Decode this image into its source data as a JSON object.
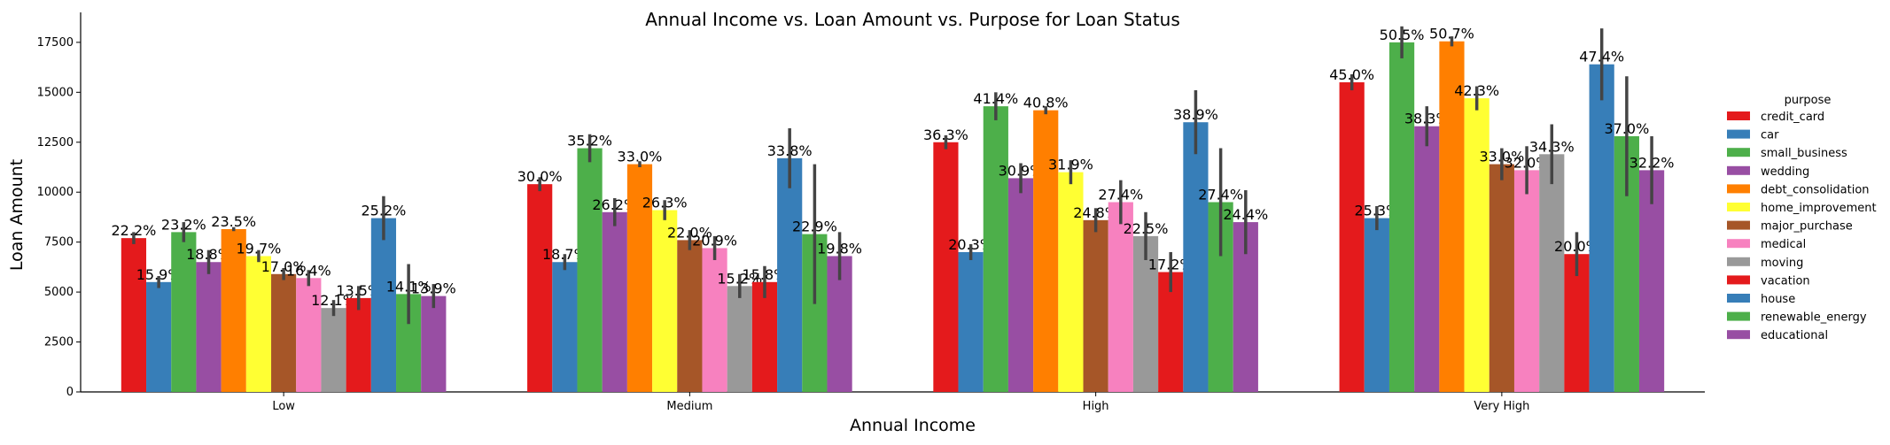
{
  "chart_data": {
    "type": "bar",
    "title": "Annual Income vs. Loan Amount vs. Purpose for Loan Status",
    "xlabel": "Annual Income",
    "ylabel": "Loan Amount",
    "categories": [
      "Low",
      "Medium",
      "High",
      "Very High"
    ],
    "ylim": [
      0,
      19000
    ],
    "yticks": [
      0,
      2500,
      5000,
      7500,
      10000,
      12500,
      15000,
      17500
    ],
    "grid": false,
    "legend": {
      "title": "purpose",
      "placement": "right"
    },
    "series": [
      {
        "name": "credit_card",
        "color": "#e41a1c",
        "values": [
          7700,
          10400,
          12500,
          15500
        ],
        "error": [
          300,
          350,
          350,
          400
        ],
        "labels": [
          "22.2%",
          "30.0%",
          "36.3%",
          "45.0%"
        ]
      },
      {
        "name": "car",
        "color": "#377eb8",
        "values": [
          5500,
          6500,
          7000,
          8700
        ],
        "error": [
          300,
          400,
          400,
          600
        ],
        "labels": [
          "15.9%",
          "18.7%",
          "20.3%",
          "25.3%"
        ]
      },
      {
        "name": "small_business",
        "color": "#4daf4a",
        "values": [
          8000,
          12200,
          14300,
          17500
        ],
        "error": [
          500,
          700,
          700,
          800
        ],
        "labels": [
          "23.2%",
          "35.2%",
          "41.4%",
          "50.5%"
        ]
      },
      {
        "name": "wedding",
        "color": "#984ea3",
        "values": [
          6500,
          9000,
          10700,
          13300
        ],
        "error": [
          600,
          700,
          750,
          1000
        ],
        "labels": [
          "18.8%",
          "26.2%",
          "30.9%",
          "38.3%"
        ]
      },
      {
        "name": "debt_consolidation",
        "color": "#ff7f00",
        "values": [
          8150,
          11400,
          14100,
          17550
        ],
        "error": [
          100,
          150,
          200,
          250
        ],
        "labels": [
          "23.5%",
          "33.0%",
          "40.8%",
          "50.7%"
        ]
      },
      {
        "name": "home_improvement",
        "color": "#ffff33",
        "values": [
          6800,
          9100,
          11000,
          14700
        ],
        "error": [
          300,
          500,
          600,
          600
        ],
        "labels": [
          "19.7%",
          "26.3%",
          "31.9%",
          "42.3%"
        ]
      },
      {
        "name": "major_purchase",
        "color": "#a65628",
        "values": [
          5900,
          7600,
          8600,
          11400
        ],
        "error": [
          300,
          500,
          600,
          800
        ],
        "labels": [
          "17.0%",
          "22.0%",
          "24.8%",
          "33.0%"
        ]
      },
      {
        "name": "medical",
        "color": "#f781bf",
        "values": [
          5700,
          7200,
          9500,
          11100
        ],
        "error": [
          400,
          600,
          1100,
          1200
        ],
        "labels": [
          "16.4%",
          "20.9%",
          "27.4%",
          "32.0%"
        ]
      },
      {
        "name": "moving",
        "color": "#999999",
        "values": [
          4200,
          5300,
          7800,
          11900
        ],
        "error": [
          400,
          600,
          1200,
          1500
        ],
        "labels": [
          "12.1%",
          "15.2%",
          "22.5%",
          "34.3%"
        ]
      },
      {
        "name": "vacation",
        "color": "#e41a1c",
        "values": [
          4700,
          5500,
          6000,
          6900
        ],
        "error": [
          600,
          800,
          1000,
          1100
        ],
        "labels": [
          "13.5%",
          "15.8%",
          "17.2%",
          "20.0%"
        ]
      },
      {
        "name": "house",
        "color": "#377eb8",
        "values": [
          8700,
          11700,
          13500,
          16400
        ],
        "error": [
          1100,
          1500,
          1600,
          1800
        ],
        "labels": [
          "25.2%",
          "33.8%",
          "38.9%",
          "47.4%"
        ]
      },
      {
        "name": "renewable_energy",
        "color": "#4daf4a",
        "values": [
          4900,
          7900,
          9500,
          12800
        ],
        "error": [
          1500,
          3500,
          2700,
          3000
        ],
        "labels": [
          "14.1%",
          "22.9%",
          "27.4%",
          "37.0%"
        ]
      },
      {
        "name": "educational",
        "color": "#984ea3",
        "values": [
          4800,
          6800,
          8500,
          11100
        ],
        "error": [
          600,
          1200,
          1600,
          1700
        ],
        "labels": [
          "13.9%",
          "19.8%",
          "24.4%",
          "32.2%"
        ]
      }
    ]
  }
}
